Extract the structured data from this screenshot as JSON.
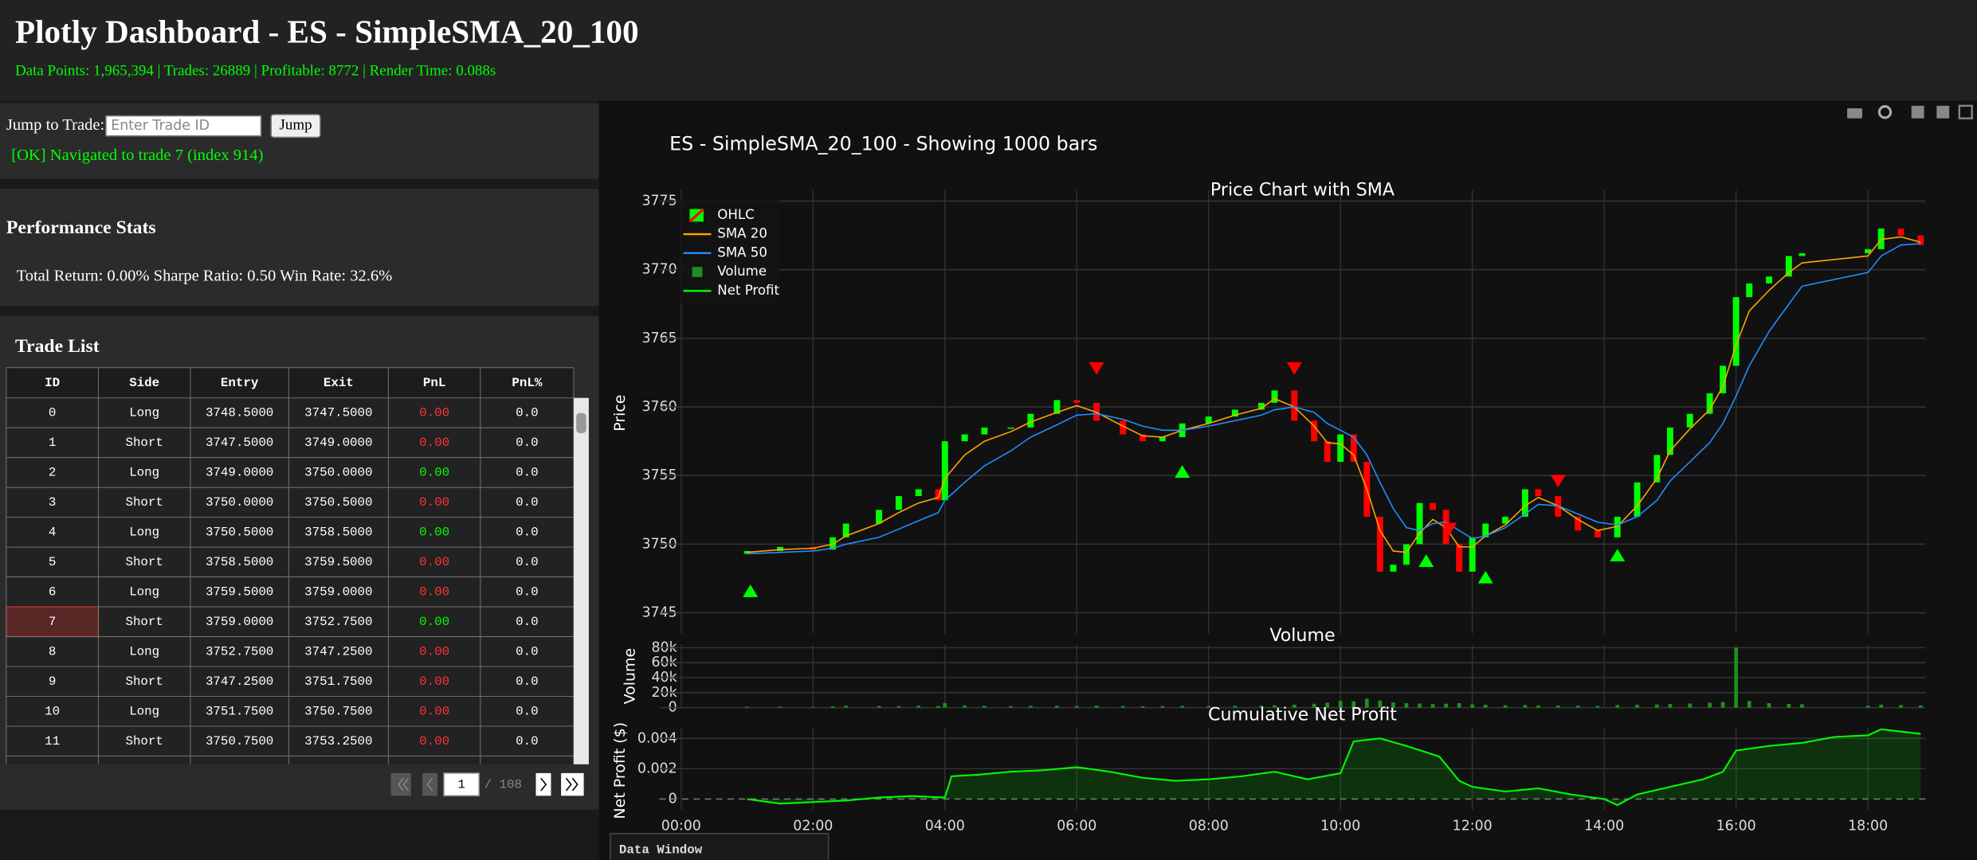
{
  "header": {
    "title": "Plotly Dashboard - ES - SimpleSMA_20_100",
    "subtitle": "Data Points: 1,965,394 | Trades: 26889 | Profitable: 8772 | Render Time: 0.088s"
  },
  "jump": {
    "label": "Jump to Trade:",
    "placeholder": "Enter Trade ID",
    "button": "Jump",
    "status": "[OK] Navigated to trade 7 (index 914)"
  },
  "stats": {
    "title": "Performance Stats",
    "text": "Total Return: 0.00% Sharpe Ratio: 0.50 Win Rate: 32.6%"
  },
  "trades": {
    "title": "Trade List",
    "columns": [
      "ID",
      "Side",
      "Entry",
      "Exit",
      "PnL",
      "PnL%"
    ],
    "rows": [
      [
        "0",
        "Long",
        "3748.5000",
        "3747.5000",
        "0.00",
        "0.0"
      ],
      [
        "1",
        "Short",
        "3747.5000",
        "3749.0000",
        "0.00",
        "0.0"
      ],
      [
        "2",
        "Long",
        "3749.0000",
        "3750.0000",
        "0.00",
        "0.0"
      ],
      [
        "3",
        "Short",
        "3750.0000",
        "3750.5000",
        "0.00",
        "0.0"
      ],
      [
        "4",
        "Long",
        "3750.5000",
        "3758.5000",
        "0.00",
        "0.0"
      ],
      [
        "5",
        "Short",
        "3758.5000",
        "3759.5000",
        "0.00",
        "0.0"
      ],
      [
        "6",
        "Long",
        "3759.5000",
        "3759.0000",
        "0.00",
        "0.0"
      ],
      [
        "7",
        "Short",
        "3759.0000",
        "3752.7500",
        "0.00",
        "0.0"
      ],
      [
        "8",
        "Long",
        "3752.7500",
        "3747.2500",
        "0.00",
        "0.0"
      ],
      [
        "9",
        "Short",
        "3747.2500",
        "3751.7500",
        "0.00",
        "0.0"
      ],
      [
        "10",
        "Long",
        "3751.7500",
        "3750.7500",
        "0.00",
        "0.0"
      ],
      [
        "11",
        "Short",
        "3750.7500",
        "3753.2500",
        "0.00",
        "0.0"
      ]
    ],
    "pnl_profit": [
      false,
      false,
      true,
      false,
      true,
      false,
      false,
      true,
      false,
      false,
      false,
      false
    ],
    "profit_color": "#00ff00",
    "loss_color": "#ff3333",
    "selected_row": 7,
    "selected_color": "#5a2626",
    "page": "1",
    "pages": "/ 108"
  },
  "plot_title": "ES - SimpleSMA_20_100 - Showing 1000 bars",
  "data_window": "Data Window",
  "chart_data": [
    {
      "type": "candlestick",
      "name": "OHLC",
      "title": "Price Chart with SMA",
      "y_label": "Price",
      "up_color": "#00ff00",
      "down_color": "#ff0000",
      "grid": true,
      "legend": "top-left",
      "xlim": [
        -0.33,
        18.87
      ],
      "ylim": [
        3743.5,
        3775.8
      ],
      "yticks": [
        3745,
        3750,
        3755,
        3760,
        3765,
        3770,
        3775
      ],
      "x": [
        1.0,
        1.5,
        2.0,
        2.3,
        2.5,
        3.0,
        3.3,
        3.6,
        3.9,
        4.0,
        4.3,
        4.6,
        5.0,
        5.3,
        5.7,
        6.0,
        6.3,
        6.7,
        7.0,
        7.3,
        7.6,
        8.0,
        8.4,
        8.8,
        9.0,
        9.3,
        9.6,
        9.8,
        10.0,
        10.2,
        10.4,
        10.6,
        10.8,
        11.0,
        11.2,
        11.4,
        11.6,
        11.8,
        12.0,
        12.2,
        12.5,
        12.8,
        13.0,
        13.3,
        13.6,
        13.9,
        14.2,
        14.5,
        14.8,
        15.0,
        15.3,
        15.6,
        15.8,
        16.0,
        16.2,
        16.5,
        16.8,
        17.0,
        18.0,
        18.2,
        18.5,
        18.8
      ],
      "open": [
        3749.3,
        3749.5,
        3749.8,
        3749.6,
        3750.5,
        3751.5,
        3752.5,
        3753.5,
        3754,
        3753.2,
        3757.5,
        3758,
        3758.5,
        3758.5,
        3759.5,
        3760.5,
        3760.3,
        3759,
        3758,
        3757.5,
        3757.8,
        3758.8,
        3759.3,
        3759.8,
        3760.3,
        3761.2,
        3759,
        3757.5,
        3756,
        3758,
        3756,
        3752,
        3748,
        3748.5,
        3750,
        3753,
        3752.5,
        3750,
        3748,
        3750.5,
        3751.5,
        3752,
        3754,
        3753.5,
        3752,
        3751,
        3750.5,
        3752,
        3754.5,
        3756.5,
        3758.5,
        3759.5,
        3761,
        3763,
        3768,
        3769,
        3769.5,
        3771,
        3771.2,
        3771.5,
        3773,
        3772.5
      ],
      "close": [
        3749.5,
        3749.8,
        3749.6,
        3750.5,
        3751.5,
        3752.5,
        3753.5,
        3754,
        3753.2,
        3757.5,
        3758,
        3758.5,
        3758.5,
        3759.5,
        3760.5,
        3760.3,
        3759,
        3758,
        3757.5,
        3757.8,
        3758.8,
        3759.3,
        3759.8,
        3760.3,
        3761.2,
        3759,
        3757.5,
        3756,
        3758,
        3756,
        3752,
        3748,
        3748.5,
        3750,
        3753,
        3752.5,
        3750,
        3748,
        3750.5,
        3751.5,
        3752,
        3754,
        3753.5,
        3752,
        3751,
        3750.5,
        3752,
        3754.5,
        3756.5,
        3758.5,
        3759.5,
        3761,
        3763,
        3768,
        3769,
        3769.5,
        3771,
        3771.2,
        3771.5,
        3773,
        3772.5,
        3771.8
      ],
      "series": [
        {
          "name": "SMA 20",
          "color": "#ffa500",
          "values": [
            3749.4,
            3749.6,
            3749.7,
            3750.0,
            3750.6,
            3751.5,
            3752.3,
            3753.0,
            3753.4,
            3754.8,
            3756.5,
            3757.5,
            3758.2,
            3758.9,
            3759.6,
            3760.1,
            3759.6,
            3758.6,
            3757.9,
            3757.8,
            3758.3,
            3758.8,
            3759.4,
            3759.9,
            3760.6,
            3760.0,
            3758.6,
            3757.4,
            3757.3,
            3756.5,
            3754.0,
            3751.0,
            3749.5,
            3749.4,
            3750.8,
            3751.8,
            3751.2,
            3749.8,
            3749.8,
            3750.6,
            3751.4,
            3752.8,
            3753.4,
            3752.8,
            3751.8,
            3751.0,
            3751.3,
            3752.8,
            3754.8,
            3756.8,
            3758.4,
            3759.8,
            3761.5,
            3764.5,
            3767.0,
            3768.5,
            3769.8,
            3770.5,
            3771.0,
            3772.2,
            3772.4,
            3772.0
          ]
        },
        {
          "name": "SMA 50",
          "color": "#1e90ff",
          "values": [
            3749.3,
            3749.4,
            3749.5,
            3749.7,
            3750.0,
            3750.5,
            3751.1,
            3751.7,
            3752.3,
            3753.2,
            3754.5,
            3755.7,
            3756.8,
            3757.8,
            3758.7,
            3759.4,
            3759.5,
            3759.1,
            3758.6,
            3758.3,
            3758.3,
            3758.6,
            3759.0,
            3759.4,
            3759.8,
            3760.0,
            3759.6,
            3758.8,
            3758.3,
            3757.8,
            3756.5,
            3754.5,
            3752.6,
            3751.2,
            3751.0,
            3751.5,
            3751.6,
            3751.0,
            3750.4,
            3750.6,
            3751.2,
            3752.2,
            3752.9,
            3752.8,
            3752.2,
            3751.6,
            3751.4,
            3752.0,
            3753.2,
            3754.6,
            3756.0,
            3757.4,
            3758.8,
            3760.8,
            3763.0,
            3765.5,
            3767.5,
            3768.8,
            3769.8,
            3771.0,
            3771.8,
            3771.9
          ]
        }
      ],
      "buy_signals": {
        "color": "#00ff00",
        "x": [
          1.05,
          7.6,
          11.3,
          12.2,
          14.2
        ],
        "y": [
          3746.6,
          3755.3,
          3748.8,
          3747.6,
          3749.2
        ]
      },
      "sell_signals": {
        "color": "#ff0000",
        "x": [
          6.3,
          9.3,
          11.65,
          13.3
        ],
        "y": [
          3762.8,
          3762.8,
          3751.1,
          3754.6
        ]
      }
    },
    {
      "type": "bar",
      "name": "Volume",
      "title": "Volume",
      "y_label": "Volume",
      "color": "#1f8f1f",
      "grid": true,
      "xlim": [
        -0.33,
        18.87
      ],
      "ylim": [
        0,
        84000
      ],
      "yticks": [
        0,
        {
          "value": 20000,
          "label": "20k"
        },
        {
          "value": 40000,
          "label": "40k"
        },
        {
          "value": 60000,
          "label": "60k"
        },
        {
          "value": 80000,
          "label": "80k"
        }
      ],
      "x": [
        1.0,
        1.5,
        2.0,
        2.3,
        2.5,
        3.0,
        3.3,
        3.6,
        3.9,
        4.0,
        4.3,
        4.6,
        5.0,
        5.3,
        5.7,
        6.0,
        6.3,
        6.7,
        7.0,
        7.3,
        7.6,
        8.0,
        8.4,
        8.8,
        9.0,
        9.3,
        9.6,
        9.8,
        10.0,
        10.2,
        10.4,
        10.6,
        10.8,
        11.0,
        11.2,
        11.4,
        11.6,
        11.8,
        12.0,
        12.2,
        12.5,
        12.8,
        13.0,
        13.3,
        13.6,
        13.9,
        14.2,
        14.5,
        14.8,
        15.0,
        15.3,
        15.6,
        15.8,
        16.0,
        16.2,
        16.5,
        16.8,
        17.0,
        18.0,
        18.2,
        18.5,
        18.8
      ],
      "values": [
        1200,
        1500,
        1000,
        1800,
        2500,
        2200,
        2000,
        2600,
        2100,
        6000,
        3000,
        2500,
        2000,
        2400,
        2600,
        2300,
        2800,
        2200,
        1900,
        2000,
        2300,
        2100,
        2400,
        2600,
        3200,
        4000,
        5200,
        6500,
        9000,
        8500,
        12000,
        9500,
        7000,
        6000,
        5500,
        4800,
        5200,
        6000,
        4500,
        3800,
        3200,
        3500,
        3000,
        2800,
        2600,
        2400,
        3500,
        3800,
        4200,
        5000,
        5500,
        6500,
        7500,
        80000,
        9000,
        6000,
        5000,
        4500,
        2500,
        4000,
        3500,
        3000
      ]
    },
    {
      "type": "area",
      "name": "Net Profit",
      "title": "Cumulative Net Profit",
      "y_label": "Net Profit ($)",
      "color": "#00ff00",
      "fill_color": "rgba(0,255,0,0.14)",
      "grid": true,
      "xlim": [
        -0.33,
        18.87
      ],
      "ylim": [
        -0.0007,
        0.0047
      ],
      "yticks": [
        0,
        0.002,
        0.004
      ],
      "xticks": [
        {
          "value": 0,
          "label": "00:00"
        },
        {
          "value": 2,
          "label": "02:00"
        },
        {
          "value": 4,
          "label": "04:00"
        },
        {
          "value": 6,
          "label": "06:00"
        },
        {
          "value": 8,
          "label": "08:00"
        },
        {
          "value": 10,
          "label": "10:00"
        },
        {
          "value": 12,
          "label": "12:00"
        },
        {
          "value": 14,
          "label": "14:00"
        },
        {
          "value": 16,
          "label": "16:00"
        },
        {
          "value": 18,
          "label": "18:00"
        }
      ],
      "x": [
        1.0,
        1.5,
        2.0,
        2.5,
        3.0,
        3.5,
        4.0,
        4.1,
        4.5,
        5.0,
        5.5,
        6.0,
        6.5,
        7.0,
        7.5,
        8.0,
        8.5,
        9.0,
        9.5,
        10.0,
        10.2,
        10.6,
        11.0,
        11.5,
        11.8,
        12.0,
        12.5,
        13.0,
        13.5,
        14.0,
        14.2,
        14.5,
        15.0,
        15.5,
        15.8,
        16.0,
        16.5,
        17.0,
        17.5,
        18.0,
        18.2,
        18.8
      ],
      "values": [
        0,
        -0.0003,
        -0.0002,
        -0.0001,
        0.0001,
        0.0002,
        0.0001,
        0.0015,
        0.0016,
        0.0018,
        0.0019,
        0.0021,
        0.0018,
        0.0014,
        0.0012,
        0.0013,
        0.0015,
        0.0018,
        0.0013,
        0.0017,
        0.0038,
        0.004,
        0.0035,
        0.0028,
        0.0012,
        0.0008,
        0.0005,
        0.0007,
        0.0003,
        0,
        -0.0004,
        0.0003,
        0.0008,
        0.0013,
        0.0018,
        0.0032,
        0.0035,
        0.0037,
        0.0041,
        0.0042,
        0.0046,
        0.0043
      ]
    }
  ]
}
